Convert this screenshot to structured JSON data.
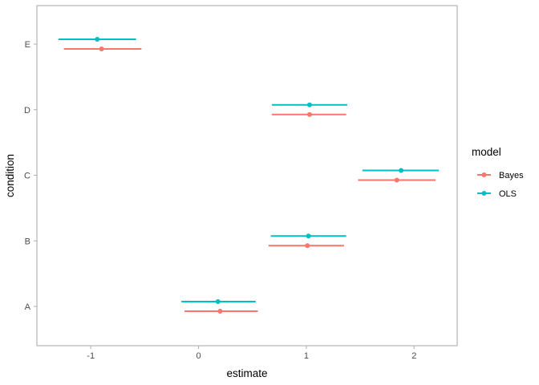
{
  "chart_data": {
    "type": "scatter",
    "subtype": "point-range (dot-and-whisker)",
    "title": "",
    "xlabel": "estimate",
    "ylabel": "condition",
    "xlim": [
      -1.5,
      2.4
    ],
    "x_ticks": [
      -1,
      0,
      1,
      2
    ],
    "categories": [
      "A",
      "B",
      "C",
      "D",
      "E"
    ],
    "grid": false,
    "legend": {
      "title": "model",
      "position": "right"
    },
    "series": [
      {
        "name": "Bayes",
        "color": "#F8766D",
        "points": [
          {
            "condition": "A",
            "estimate": 0.2,
            "low": -0.13,
            "high": 0.55
          },
          {
            "condition": "B",
            "estimate": 1.01,
            "low": 0.65,
            "high": 1.35
          },
          {
            "condition": "C",
            "estimate": 1.84,
            "low": 1.48,
            "high": 2.2
          },
          {
            "condition": "D",
            "estimate": 1.03,
            "low": 0.68,
            "high": 1.37
          },
          {
            "condition": "E",
            "estimate": -0.9,
            "low": -1.25,
            "high": -0.53
          }
        ]
      },
      {
        "name": "OLS",
        "color": "#00BFC4",
        "points": [
          {
            "condition": "A",
            "estimate": 0.18,
            "low": -0.16,
            "high": 0.53
          },
          {
            "condition": "B",
            "estimate": 1.02,
            "low": 0.67,
            "high": 1.37
          },
          {
            "condition": "C",
            "estimate": 1.88,
            "low": 1.52,
            "high": 2.23
          },
          {
            "condition": "D",
            "estimate": 1.03,
            "low": 0.68,
            "high": 1.38
          },
          {
            "condition": "E",
            "estimate": -0.94,
            "low": -1.3,
            "high": -0.58
          }
        ]
      }
    ]
  }
}
